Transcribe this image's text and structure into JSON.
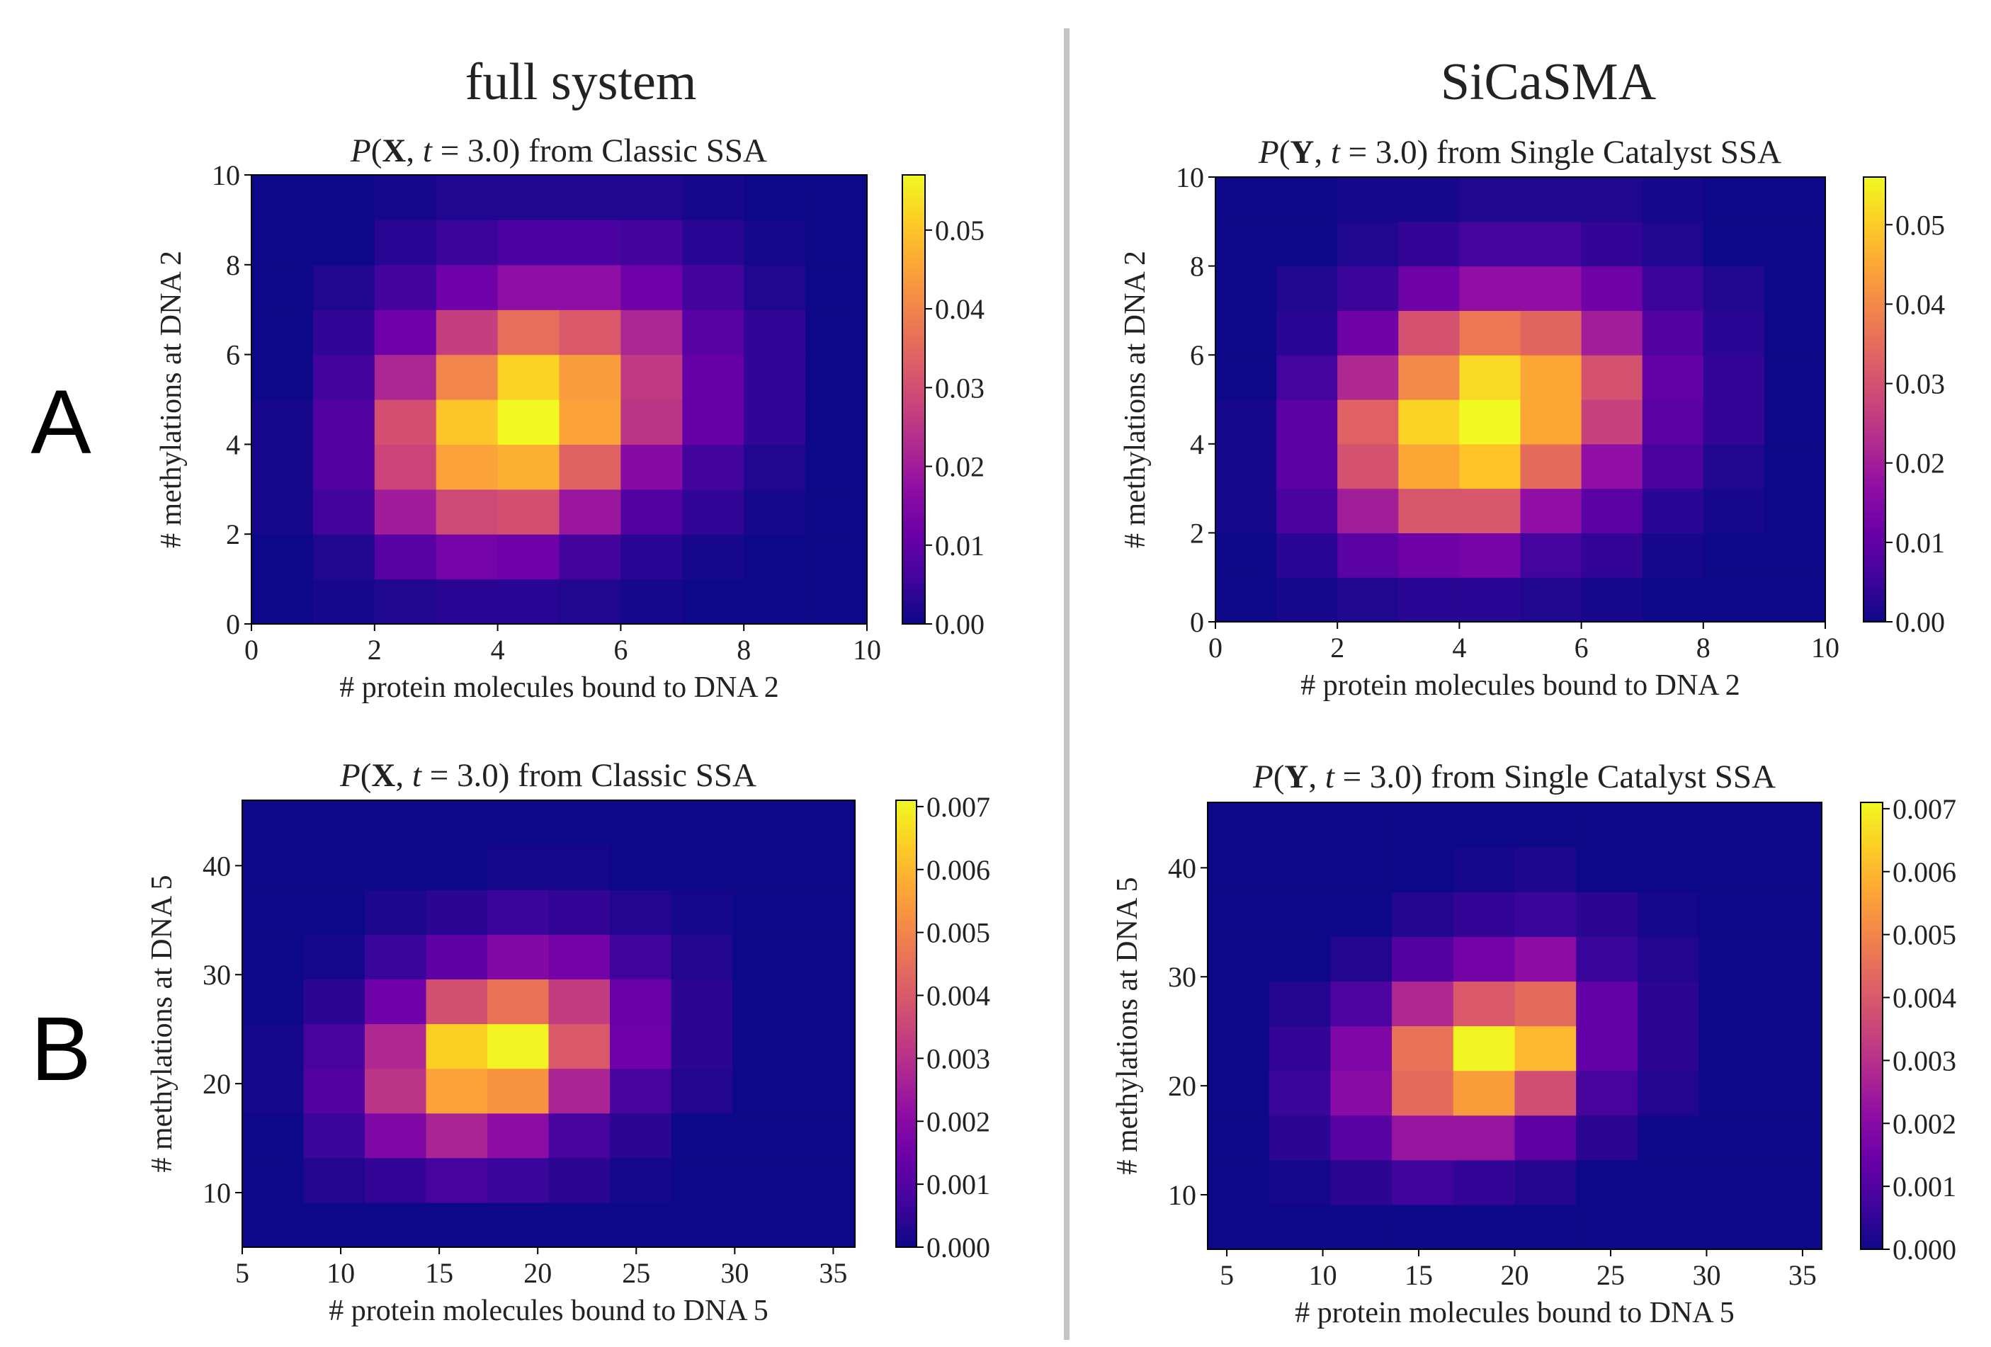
{
  "column_headers": [
    "full system",
    "SiCaSMA"
  ],
  "row_labels": [
    "A",
    "B"
  ],
  "chart_data": [
    {
      "type": "heatmap",
      "panel": "A",
      "column": "full system",
      "title": "P(X, t = 3.0) from Classic SSA",
      "title_parts": [
        {
          "t": "P",
          "s": "i"
        },
        {
          "t": "(",
          "s": ""
        },
        {
          "t": "X",
          "s": "b"
        },
        {
          "t": ", ",
          "s": ""
        },
        {
          "t": "t",
          "s": "i"
        },
        {
          "t": " = 3.0) from Classic SSA",
          "s": ""
        }
      ],
      "xlabel": "# protein molecules bound to DNA 2",
      "ylabel": "# methylations at DNA 2",
      "xlim": [
        0,
        10
      ],
      "ylim": [
        0,
        10
      ],
      "xticks": [
        0,
        2,
        4,
        6,
        8,
        10
      ],
      "yticks": [
        0,
        2,
        4,
        6,
        8,
        10
      ],
      "colormap": "plasma",
      "colorbar": {
        "min": 0,
        "max": 0.057,
        "ticks": [
          0,
          0.01,
          0.02,
          0.03,
          0.04,
          0.05
        ],
        "tick_labels": [
          "0.00",
          "0.01",
          "0.02",
          "0.03",
          "0.04",
          "0.05"
        ]
      },
      "z_rows_bottom_to_top": [
        [
          0,
          0.001,
          0.002,
          0.003,
          0.003,
          0.002,
          0.001,
          0,
          0,
          0
        ],
        [
          0,
          0.002,
          0.009,
          0.013,
          0.012,
          0.006,
          0.003,
          0.001,
          0,
          0
        ],
        [
          0.001,
          0.006,
          0.02,
          0.029,
          0.03,
          0.019,
          0.008,
          0.004,
          0.001,
          0
        ],
        [
          0.001,
          0.008,
          0.028,
          0.045,
          0.047,
          0.034,
          0.016,
          0.006,
          0.002,
          0
        ],
        [
          0.001,
          0.008,
          0.03,
          0.05,
          0.057,
          0.045,
          0.025,
          0.011,
          0.004,
          0
        ],
        [
          0,
          0.006,
          0.022,
          0.04,
          0.052,
          0.044,
          0.026,
          0.011,
          0.004,
          0
        ],
        [
          0,
          0.004,
          0.012,
          0.027,
          0.036,
          0.032,
          0.022,
          0.009,
          0.004,
          0
        ],
        [
          0,
          0.002,
          0.006,
          0.012,
          0.017,
          0.017,
          0.012,
          0.006,
          0.002,
          0
        ],
        [
          0,
          0,
          0.003,
          0.005,
          0.007,
          0.007,
          0.006,
          0.003,
          0.001,
          0
        ],
        [
          0,
          0,
          0.001,
          0.002,
          0.002,
          0.002,
          0.002,
          0.001,
          0,
          0
        ]
      ]
    },
    {
      "type": "heatmap",
      "panel": "A",
      "column": "SiCaSMA",
      "title": "P(Y, t = 3.0) from Single Catalyst SSA",
      "title_parts": [
        {
          "t": "P",
          "s": "i"
        },
        {
          "t": "(",
          "s": ""
        },
        {
          "t": "Y",
          "s": "b"
        },
        {
          "t": ", ",
          "s": ""
        },
        {
          "t": "t",
          "s": "i"
        },
        {
          "t": " = 3.0) from Single Catalyst SSA",
          "s": ""
        }
      ],
      "xlabel": "# protein molecules bound to DNA 2",
      "ylabel": "# methylations at DNA 2",
      "xlim": [
        0,
        10
      ],
      "ylim": [
        0,
        10
      ],
      "xticks": [
        0,
        2,
        4,
        6,
        8,
        10
      ],
      "yticks": [
        0,
        2,
        4,
        6,
        8,
        10
      ],
      "colormap": "plasma",
      "colorbar": {
        "min": 0,
        "max": 0.056,
        "ticks": [
          0,
          0.01,
          0.02,
          0.03,
          0.04,
          0.05
        ],
        "tick_labels": [
          "0.00",
          "0.01",
          "0.02",
          "0.03",
          "0.04",
          "0.05"
        ]
      },
      "z_rows_bottom_to_top": [
        [
          0,
          0.001,
          0.002,
          0.003,
          0.003,
          0.002,
          0.001,
          0,
          0,
          0
        ],
        [
          0,
          0.003,
          0.009,
          0.012,
          0.013,
          0.006,
          0.004,
          0.001,
          0,
          0
        ],
        [
          0.001,
          0.007,
          0.02,
          0.031,
          0.031,
          0.017,
          0.009,
          0.003,
          0.001,
          0
        ],
        [
          0.001,
          0.009,
          0.03,
          0.045,
          0.049,
          0.035,
          0.017,
          0.007,
          0.002,
          0
        ],
        [
          0.001,
          0.009,
          0.033,
          0.051,
          0.056,
          0.045,
          0.027,
          0.009,
          0.004,
          0
        ],
        [
          0,
          0.006,
          0.022,
          0.04,
          0.052,
          0.045,
          0.03,
          0.01,
          0.004,
          0
        ],
        [
          0,
          0.003,
          0.012,
          0.03,
          0.037,
          0.034,
          0.02,
          0.008,
          0.003,
          0
        ],
        [
          0,
          0.002,
          0.005,
          0.012,
          0.017,
          0.017,
          0.012,
          0.005,
          0.002,
          0
        ],
        [
          0,
          0,
          0.002,
          0.004,
          0.006,
          0.006,
          0.004,
          0.002,
          0,
          0
        ],
        [
          0,
          0,
          0.001,
          0.001,
          0.002,
          0.002,
          0.002,
          0.001,
          0,
          0
        ]
      ]
    },
    {
      "type": "heatmap",
      "panel": "B",
      "column": "full system",
      "title": "P(X, t = 3.0) from Classic SSA",
      "title_parts": [
        {
          "t": "P",
          "s": "i"
        },
        {
          "t": "(",
          "s": ""
        },
        {
          "t": "X",
          "s": "b"
        },
        {
          "t": ", ",
          "s": ""
        },
        {
          "t": "t",
          "s": "i"
        },
        {
          "t": " = 3.0) from Classic SSA",
          "s": ""
        }
      ],
      "xlabel": "# protein molecules bound to DNA 5",
      "ylabel": "# methylations at DNA 5",
      "xlim": [
        5,
        36.1
      ],
      "ylim": [
        5,
        46
      ],
      "xticks": [
        5,
        10,
        15,
        20,
        25,
        30,
        35
      ],
      "yticks": [
        10,
        20,
        30,
        40
      ],
      "colormap": "plasma",
      "colorbar": {
        "min": 0,
        "max": 0.0071,
        "ticks": [
          0,
          0.001,
          0.002,
          0.003,
          0.004,
          0.005,
          0.006,
          0.007
        ],
        "tick_labels": [
          "0.000",
          "0.001",
          "0.002",
          "0.003",
          "0.004",
          "0.005",
          "0.006",
          "0.007"
        ]
      },
      "z_rows_bottom_to_top": [
        [
          0,
          0,
          0,
          0,
          0,
          0,
          0,
          0,
          0,
          0
        ],
        [
          0,
          0.0003,
          0.0005,
          0.0008,
          0.0006,
          0.0004,
          0.0001,
          0,
          0,
          0
        ],
        [
          0,
          0.0006,
          0.0018,
          0.0027,
          0.0021,
          0.0008,
          0.0004,
          0,
          0,
          0
        ],
        [
          0.0001,
          0.001,
          0.0031,
          0.0056,
          0.0053,
          0.0027,
          0.0008,
          0.0003,
          0,
          0
        ],
        [
          0.0001,
          0.0008,
          0.0028,
          0.0064,
          0.007,
          0.004,
          0.0015,
          0.0004,
          0,
          0
        ],
        [
          0,
          0.0004,
          0.0015,
          0.0038,
          0.0046,
          0.0033,
          0.0014,
          0.0004,
          0,
          0
        ],
        [
          0,
          0.0001,
          0.0006,
          0.0012,
          0.0019,
          0.0016,
          0.0007,
          0.0003,
          0,
          0
        ],
        [
          0,
          0,
          0.0002,
          0.0004,
          0.0006,
          0.0005,
          0.0003,
          0.0001,
          0,
          0
        ],
        [
          0,
          0,
          0,
          0,
          0.0001,
          0.0001,
          0,
          0,
          0,
          0
        ],
        [
          0,
          0,
          0,
          0,
          0,
          0,
          0,
          0,
          0,
          0
        ]
      ]
    },
    {
      "type": "heatmap",
      "panel": "B",
      "column": "SiCaSMA",
      "title": "P(Y, t = 3.0) from Single Catalyst SSA",
      "title_parts": [
        {
          "t": "P",
          "s": "i"
        },
        {
          "t": "(",
          "s": ""
        },
        {
          "t": "Y",
          "s": "b"
        },
        {
          "t": ", ",
          "s": ""
        },
        {
          "t": "t",
          "s": "i"
        },
        {
          "t": " = 3.0) from Single Catalyst SSA",
          "s": ""
        }
      ],
      "xlabel": "# protein molecules bound to DNA 5",
      "ylabel": "# methylations at DNA 5",
      "xlim": [
        4,
        36
      ],
      "ylim": [
        5,
        46
      ],
      "xticks": [
        5,
        10,
        15,
        20,
        25,
        30,
        35
      ],
      "yticks": [
        10,
        20,
        30,
        40
      ],
      "colormap": "plasma",
      "colorbar": {
        "min": 0,
        "max": 0.0071,
        "ticks": [
          0,
          0.001,
          0.002,
          0.003,
          0.004,
          0.005,
          0.006,
          0.007
        ],
        "tick_labels": [
          "0.000",
          "0.001",
          "0.002",
          "0.003",
          "0.004",
          "0.005",
          "0.006",
          "0.007"
        ]
      },
      "z_rows_bottom_to_top": [
        [
          0,
          0,
          0,
          0,
          0,
          0,
          0,
          0,
          0,
          0
        ],
        [
          0,
          0.0001,
          0.0004,
          0.0007,
          0.0005,
          0.0003,
          0,
          0,
          0,
          0
        ],
        [
          0,
          0.0004,
          0.0011,
          0.0023,
          0.0023,
          0.0012,
          0.0004,
          0,
          0,
          0
        ],
        [
          0,
          0.0006,
          0.002,
          0.0044,
          0.0055,
          0.0037,
          0.0008,
          0.0003,
          0,
          0
        ],
        [
          0,
          0.0005,
          0.0018,
          0.0046,
          0.007,
          0.006,
          0.0013,
          0.0004,
          0,
          0
        ],
        [
          0,
          0.0003,
          0.0009,
          0.0028,
          0.004,
          0.0044,
          0.0013,
          0.0004,
          0,
          0
        ],
        [
          0,
          0,
          0.0003,
          0.001,
          0.0016,
          0.0021,
          0.0006,
          0.0003,
          0,
          0
        ],
        [
          0,
          0,
          0,
          0.0003,
          0.0005,
          0.0006,
          0.0004,
          0.0001,
          0,
          0
        ],
        [
          0,
          0,
          0,
          0,
          0.0001,
          0.0002,
          0,
          0,
          0,
          0
        ],
        [
          0,
          0,
          0,
          0,
          0,
          0,
          0,
          0,
          0,
          0
        ]
      ]
    }
  ]
}
